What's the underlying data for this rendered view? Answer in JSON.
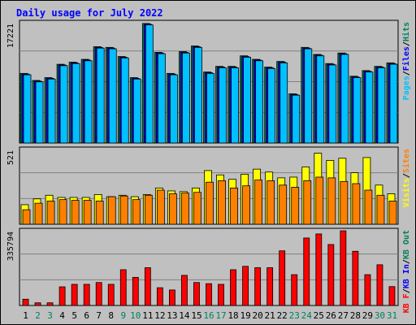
{
  "chart_data": {
    "type": "bar",
    "title": "Daily usage for July 2022",
    "days": [
      "1",
      "2",
      "3",
      "4",
      "5",
      "6",
      "7",
      "8",
      "9",
      "10",
      "11",
      "12",
      "13",
      "14",
      "15",
      "16",
      "17",
      "18",
      "19",
      "20",
      "21",
      "22",
      "23",
      "24",
      "25",
      "26",
      "27",
      "28",
      "29",
      "30",
      "31"
    ],
    "weekend_days": [
      2,
      3,
      9,
      10,
      16,
      17,
      23,
      24,
      30,
      31
    ],
    "colors": {
      "background": "#C0C0C0",
      "title": "#0000FF",
      "hits": "#00805C",
      "files": "#0000FF",
      "pages": "#00C0FF",
      "visits": "#FFFF00",
      "sites": "#FF8000",
      "kbout": "#00805C",
      "kbin": "#0000FF",
      "kbf": "#FF0000",
      "weekday_label": "#000000",
      "weekend_label": "#00805C"
    },
    "panels": [
      {
        "id": "requests",
        "max_label": "17221",
        "max_value": 17221,
        "legend": [
          "Pages",
          "/",
          "Files",
          "/",
          "Hits"
        ],
        "legend_colors": [
          "#00C0FF",
          "#000000",
          "#0000FF",
          "#000000",
          "#00805C"
        ],
        "series": [
          {
            "name": "Hits",
            "color": "#00805C",
            "values": [
              9900,
              8900,
              9300,
              11200,
              11500,
              11900,
              13700,
              13600,
              12300,
              9300,
              17000,
              12900,
              9900,
              13000,
              13800,
              10100,
              10900,
              10900,
              12400,
              11900,
              10800,
              11600,
              7000,
              13600,
              12600,
              11300,
              12800,
              9500,
              10300,
              10900,
              11400
            ]
          },
          {
            "name": "Files",
            "color": "#0000FF",
            "values": [
              9800,
              8800,
              9200,
              11100,
              11400,
              11800,
              13600,
              13500,
              12200,
              9200,
              16900,
              12800,
              9800,
              12900,
              13700,
              10000,
              10800,
              10800,
              12300,
              11800,
              10700,
              11500,
              6900,
              13500,
              12500,
              11200,
              12700,
              9400,
              10200,
              10800,
              11300
            ]
          },
          {
            "name": "Pages",
            "color": "#00C0FF",
            "values": [
              9700,
              8700,
              9100,
              11000,
              11300,
              11700,
              13500,
              13400,
              12100,
              9100,
              16800,
              12700,
              9700,
              12800,
              13600,
              9900,
              10700,
              10700,
              12200,
              11700,
              10600,
              11400,
              6800,
              13400,
              12400,
              11100,
              12600,
              9300,
              10100,
              10700,
              11200
            ]
          }
        ]
      },
      {
        "id": "visits",
        "max_label": "521",
        "max_value": 521,
        "legend": [
          "Visits",
          "/",
          "Sites"
        ],
        "legend_colors": [
          "#FFFF00",
          "#000000",
          "#FF8000"
        ],
        "series": [
          {
            "name": "Visits",
            "color": "#FFFF00",
            "values": [
              135,
              175,
              200,
              185,
              185,
              185,
              205,
              190,
              200,
              190,
              205,
              250,
              230,
              225,
              250,
              370,
              340,
              310,
              345,
              380,
              360,
              320,
              325,
              395,
              490,
              440,
              455,
              355,
              460,
              270,
              210
            ]
          },
          {
            "name": "Sites",
            "color": "#FF8000",
            "values": [
              100,
              145,
              160,
              170,
              165,
              165,
              160,
              190,
              195,
              170,
              200,
              235,
              210,
              215,
              220,
              290,
              300,
              250,
              265,
              305,
              300,
              270,
              255,
              300,
              325,
              320,
              295,
              280,
              235,
              200,
              160
            ]
          }
        ]
      },
      {
        "id": "volume",
        "max_label": "335794",
        "max_value": 335794,
        "legend": [
          "KB F",
          "/",
          "KB In",
          "/",
          "KB Out"
        ],
        "legend_colors": [
          "#FF0000",
          "#000000",
          "#0000FF",
          "#000000",
          "#00805C"
        ],
        "series": [
          {
            "name": "KB F",
            "color": "#FF0000",
            "values": [
              28000,
              12000,
              12000,
              83000,
              94000,
              94000,
              102000,
              94000,
              159000,
              125000,
              168000,
              79000,
              69000,
              134000,
              102000,
              97000,
              94000,
              159000,
              174000,
              168000,
              168000,
              243000,
              137000,
              300000,
              318000,
              271000,
              332000,
              241000,
              137000,
              181000,
              84000
            ]
          }
        ]
      }
    ]
  }
}
